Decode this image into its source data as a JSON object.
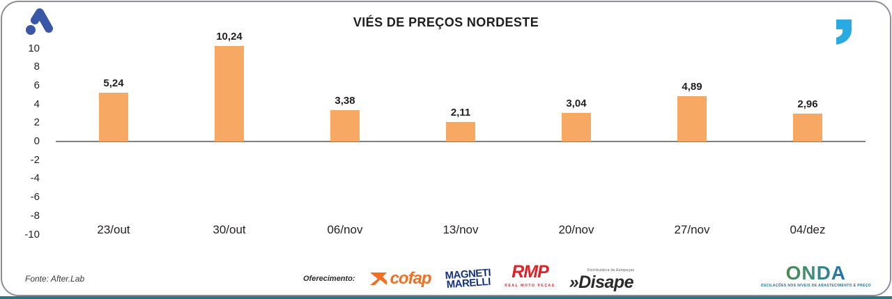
{
  "page": {
    "title": "VIÉS DE PREÇOS NORDESTE"
  },
  "chart_data": {
    "type": "bar",
    "title": "VIÉS DE PREÇOS NORDESTE",
    "categories": [
      "23/out",
      "30/out",
      "06/nov",
      "13/nov",
      "20/nov",
      "27/nov",
      "04/dez"
    ],
    "values": [
      5.24,
      10.24,
      3.38,
      2.11,
      3.04,
      4.89,
      2.96
    ],
    "value_labels": [
      "5,24",
      "10,24",
      "3,38",
      "2,11",
      "3,04",
      "4,89",
      "2,96"
    ],
    "yticks": [
      10,
      8,
      6,
      4,
      2,
      0,
      -2,
      -4,
      -6,
      -8,
      -10
    ],
    "ylim": [
      -10,
      10
    ],
    "grid": false,
    "legend": false,
    "bar_color": "#f7a863",
    "axis_line_color": "#7f7f7f",
    "xlabel": "",
    "ylabel": ""
  },
  "footer": {
    "fonte": "Fonte: After.Lab",
    "oferecimento": "Oferecimento:",
    "sponsors": {
      "cofap": "cofap",
      "magneti_line1": "MAGNETI",
      "magneti_line2": "MARELLI",
      "rmp": "RMP",
      "rmp_sub": "REAL MOTO PEÇAS",
      "disape": "»Disape",
      "disape_sub": "Distribuidora de Autopeças",
      "onda": "ONDA",
      "onda_tagline": "OSCILAÇÕES NOS NÍVEIS DE ABASTECIMENTO E PREÇO"
    }
  },
  "colors": {
    "brand_blue": "#3a57a7",
    "quote_blue": "#29abe2",
    "strip_teal": "#2e7484",
    "border_gray": "#8a8f98"
  }
}
